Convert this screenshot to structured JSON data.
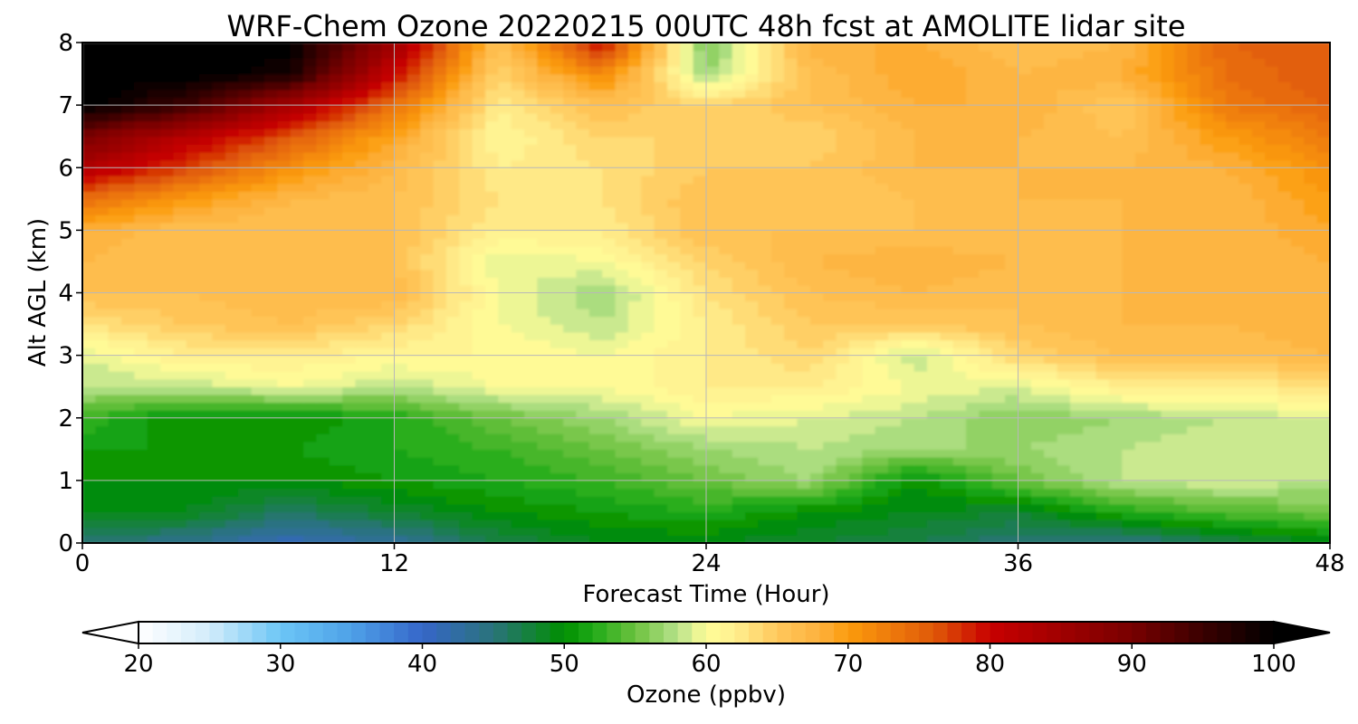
{
  "chart_data": {
    "type": "heatmap",
    "title": "WRF-Chem Ozone  20220215 00UTC 48h fcst at AMOLITE lidar site",
    "xlabel": "Forecast Time (Hour)",
    "ylabel": "Alt AGL (km)",
    "xlim": [
      0,
      48
    ],
    "ylim": [
      0,
      8
    ],
    "x_ticks": [
      0,
      12,
      24,
      36,
      48
    ],
    "y_ticks": [
      0,
      1,
      2,
      3,
      4,
      5,
      6,
      7,
      8
    ],
    "grid": true,
    "z_units": "ppbv",
    "x": [
      0,
      4,
      8,
      12,
      16,
      20,
      24,
      28,
      32,
      36,
      40,
      44,
      48
    ],
    "y": [
      0,
      0.5,
      1,
      1.5,
      2,
      2.5,
      3,
      3.5,
      4,
      4.5,
      5,
      5.5,
      6,
      6.5,
      7,
      7.5,
      8
    ],
    "z": [
      [
        45,
        44,
        41,
        43,
        47,
        49,
        49,
        48,
        47,
        45,
        44,
        47,
        49
      ],
      [
        49,
        49,
        46,
        48,
        50,
        51,
        52,
        50,
        49,
        48,
        52,
        54,
        55
      ],
      [
        50,
        50,
        50,
        51,
        52,
        53,
        55,
        57,
        50,
        55,
        58,
        59,
        58
      ],
      [
        51,
        51,
        51,
        52,
        53,
        55,
        57,
        58,
        57,
        57,
        58,
        59,
        58
      ],
      [
        53,
        50,
        50,
        52,
        55,
        57,
        60,
        59,
        58,
        56,
        57,
        58,
        59
      ],
      [
        58,
        58,
        60,
        58,
        60,
        60,
        62,
        62,
        60,
        59,
        62,
        62,
        63
      ],
      [
        59,
        62,
        62,
        61,
        61,
        60,
        62,
        64,
        58,
        64,
        66,
        66,
        67
      ],
      [
        63,
        65,
        66,
        64,
        60,
        58,
        62,
        65,
        65,
        66,
        67,
        67,
        68
      ],
      [
        66,
        66,
        67,
        67,
        60,
        57,
        63,
        66,
        67,
        66,
        67,
        67,
        68
      ],
      [
        67,
        66,
        66,
        66,
        59,
        60,
        64,
        67,
        68,
        67,
        67,
        67,
        68
      ],
      [
        68,
        66,
        66,
        66,
        62,
        62,
        66,
        66,
        66,
        66,
        67,
        67,
        69
      ],
      [
        74,
        70,
        67,
        66,
        63,
        63,
        66,
        65,
        66,
        67,
        67,
        67,
        70
      ],
      [
        83,
        77,
        71,
        67,
        62,
        63,
        65,
        65,
        67,
        67,
        67,
        68,
        71
      ],
      [
        90,
        82,
        76,
        69,
        61,
        64,
        64,
        64,
        67,
        67,
        66,
        70,
        73
      ],
      [
        100,
        95,
        84,
        74,
        62,
        66,
        64,
        66,
        68,
        68,
        65,
        73,
        75
      ],
      [
        100,
        100,
        98,
        80,
        64,
        72,
        57,
        66,
        69,
        67,
        68,
        74,
        76
      ],
      [
        100,
        100,
        100,
        85,
        66,
        80,
        55,
        68,
        68,
        66,
        67,
        75,
        76
      ]
    ],
    "colorbar": {
      "label": "Ozone  (ppbv)",
      "min": 20,
      "max": 100,
      "step": 1,
      "extend": "both",
      "ticks": [
        20,
        30,
        40,
        50,
        60,
        70,
        80,
        90,
        100
      ],
      "stops": [
        [
          20,
          "#ffffff"
        ],
        [
          25,
          "#d2ecfa"
        ],
        [
          30,
          "#6cc6f6"
        ],
        [
          35,
          "#4ea1e8"
        ],
        [
          40,
          "#3666c9"
        ],
        [
          45,
          "#2a737a"
        ],
        [
          50,
          "#008f00"
        ],
        [
          52,
          "#1faa18"
        ],
        [
          55,
          "#6cc23e"
        ],
        [
          58,
          "#b8e28c"
        ],
        [
          60,
          "#fffd98"
        ],
        [
          62,
          "#fff090"
        ],
        [
          65,
          "#ffc85c"
        ],
        [
          68,
          "#fdb13e"
        ],
        [
          70,
          "#fb9c0c"
        ],
        [
          73,
          "#ee7a0c"
        ],
        [
          76,
          "#e05a08"
        ],
        [
          80,
          "#c80000"
        ],
        [
          85,
          "#a00000"
        ],
        [
          90,
          "#780000"
        ],
        [
          95,
          "#3a0000"
        ],
        [
          100,
          "#000000"
        ]
      ]
    }
  }
}
